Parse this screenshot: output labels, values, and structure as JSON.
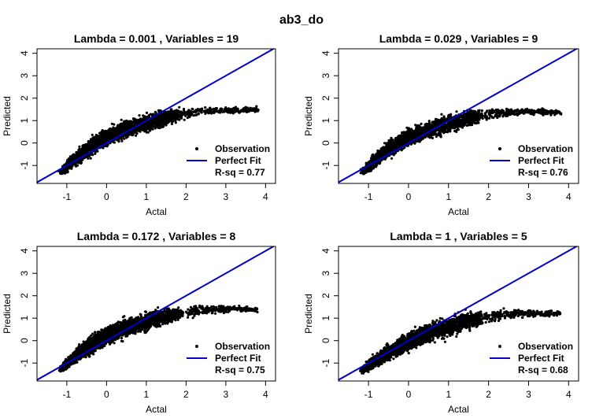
{
  "figure_title": "ab3_do",
  "colors": {
    "points": "#000000",
    "perfect_fit": "#0000cc",
    "axis": "#000000",
    "background": "#ffffff"
  },
  "chart_data": [
    {
      "type": "scatter",
      "title": "Lambda =  0.001 , Variables =  19",
      "lambda": 0.001,
      "variables": 19,
      "xlabel": "Actal",
      "ylabel": "Predicted",
      "xlim": [
        -1.75,
        4.25
      ],
      "ylim": [
        -1.8,
        4.2
      ],
      "xticks": [
        -1,
        0,
        1,
        2,
        3,
        4
      ],
      "yticks": [
        -1,
        0,
        1,
        2,
        3,
        4
      ],
      "legend": {
        "placement": "bottom-right",
        "entries": [
          "Observation",
          "Perfect Fit"
        ],
        "rsq_label": "R-sq = 0.77"
      },
      "r_squared": 0.77,
      "reference_line": {
        "intercept": 0,
        "slope": 1
      },
      "observation_bands": [
        [
          -1.15,
          -1.3,
          0.15
        ],
        [
          -0.9,
          -0.9,
          0.3
        ],
        [
          -0.6,
          -0.45,
          0.4
        ],
        [
          -0.3,
          -0.05,
          0.45
        ],
        [
          0.0,
          0.25,
          0.45
        ],
        [
          0.3,
          0.5,
          0.45
        ],
        [
          0.6,
          0.7,
          0.45
        ],
        [
          1.0,
          0.9,
          0.45
        ],
        [
          1.4,
          1.1,
          0.4
        ],
        [
          1.8,
          1.25,
          0.3
        ],
        [
          2.3,
          1.4,
          0.2
        ],
        [
          2.8,
          1.45,
          0.15
        ],
        [
          3.3,
          1.45,
          0.15
        ],
        [
          3.8,
          1.5,
          0.12
        ]
      ]
    },
    {
      "type": "scatter",
      "title": "Lambda =  0.029 , Variables =  9",
      "lambda": 0.029,
      "variables": 9,
      "xlabel": "Actal",
      "ylabel": "Predicted",
      "xlim": [
        -1.75,
        4.25
      ],
      "ylim": [
        -1.8,
        4.2
      ],
      "xticks": [
        -1,
        0,
        1,
        2,
        3,
        4
      ],
      "yticks": [
        -1,
        0,
        1,
        2,
        3,
        4
      ],
      "legend": {
        "placement": "bottom-right",
        "entries": [
          "Observation",
          "Perfect Fit"
        ],
        "rsq_label": "R-sq = 0.76"
      },
      "r_squared": 0.76,
      "reference_line": {
        "intercept": 0,
        "slope": 1
      },
      "observation_bands": [
        [
          -1.15,
          -1.3,
          0.12
        ],
        [
          -0.9,
          -0.85,
          0.3
        ],
        [
          -0.6,
          -0.4,
          0.4
        ],
        [
          -0.3,
          -0.05,
          0.4
        ],
        [
          0.0,
          0.25,
          0.4
        ],
        [
          0.3,
          0.45,
          0.4
        ],
        [
          0.6,
          0.65,
          0.4
        ],
        [
          1.0,
          0.85,
          0.45
        ],
        [
          1.4,
          1.05,
          0.4
        ],
        [
          1.8,
          1.2,
          0.3
        ],
        [
          2.3,
          1.35,
          0.2
        ],
        [
          2.8,
          1.4,
          0.15
        ],
        [
          3.3,
          1.4,
          0.15
        ],
        [
          3.8,
          1.35,
          0.12
        ]
      ]
    },
    {
      "type": "scatter",
      "title": "Lambda =  0.172 , Variables =  8",
      "lambda": 0.172,
      "variables": 8,
      "xlabel": "Actal",
      "ylabel": "Predicted",
      "xlim": [
        -1.75,
        4.25
      ],
      "ylim": [
        -1.8,
        4.2
      ],
      "xticks": [
        -1,
        0,
        1,
        2,
        3,
        4
      ],
      "yticks": [
        -1,
        0,
        1,
        2,
        3,
        4
      ],
      "legend": {
        "placement": "bottom-right",
        "entries": [
          "Observation",
          "Perfect Fit"
        ],
        "rsq_label": "R-sq = 0.75"
      },
      "r_squared": 0.75,
      "reference_line": {
        "intercept": 0,
        "slope": 1
      },
      "observation_bands": [
        [
          -1.15,
          -1.3,
          0.12
        ],
        [
          -0.9,
          -0.85,
          0.3
        ],
        [
          -0.6,
          -0.45,
          0.4
        ],
        [
          -0.3,
          -0.1,
          0.45
        ],
        [
          0.0,
          0.2,
          0.45
        ],
        [
          0.3,
          0.45,
          0.45
        ],
        [
          0.6,
          0.65,
          0.45
        ],
        [
          1.0,
          0.85,
          0.45
        ],
        [
          1.4,
          1.05,
          0.4
        ],
        [
          1.8,
          1.2,
          0.3
        ],
        [
          2.3,
          1.35,
          0.25
        ],
        [
          2.8,
          1.4,
          0.2
        ],
        [
          3.3,
          1.4,
          0.15
        ],
        [
          3.8,
          1.35,
          0.12
        ]
      ]
    },
    {
      "type": "scatter",
      "title": "Lambda =  1 , Variables =  5",
      "lambda": 1,
      "variables": 5,
      "xlabel": "Actal",
      "ylabel": "Predicted",
      "xlim": [
        -1.75,
        4.25
      ],
      "ylim": [
        -1.8,
        4.2
      ],
      "xticks": [
        -1,
        0,
        1,
        2,
        3,
        4
      ],
      "yticks": [
        -1,
        0,
        1,
        2,
        3,
        4
      ],
      "legend": {
        "placement": "bottom-right",
        "entries": [
          "Observation",
          "Perfect Fit"
        ],
        "rsq_label": "R-sq = 0.68"
      },
      "r_squared": 0.68,
      "reference_line": {
        "intercept": 0,
        "slope": 1
      },
      "observation_bands": [
        [
          -1.15,
          -1.35,
          0.12
        ],
        [
          -0.9,
          -1.0,
          0.3
        ],
        [
          -0.6,
          -0.65,
          0.35
        ],
        [
          -0.3,
          -0.35,
          0.4
        ],
        [
          0.0,
          -0.05,
          0.45
        ],
        [
          0.3,
          0.2,
          0.45
        ],
        [
          0.6,
          0.4,
          0.45
        ],
        [
          1.0,
          0.6,
          0.5
        ],
        [
          1.4,
          0.85,
          0.45
        ],
        [
          1.8,
          1.0,
          0.35
        ],
        [
          2.3,
          1.15,
          0.25
        ],
        [
          2.8,
          1.2,
          0.2
        ],
        [
          3.3,
          1.2,
          0.15
        ],
        [
          3.8,
          1.2,
          0.12
        ]
      ]
    }
  ]
}
